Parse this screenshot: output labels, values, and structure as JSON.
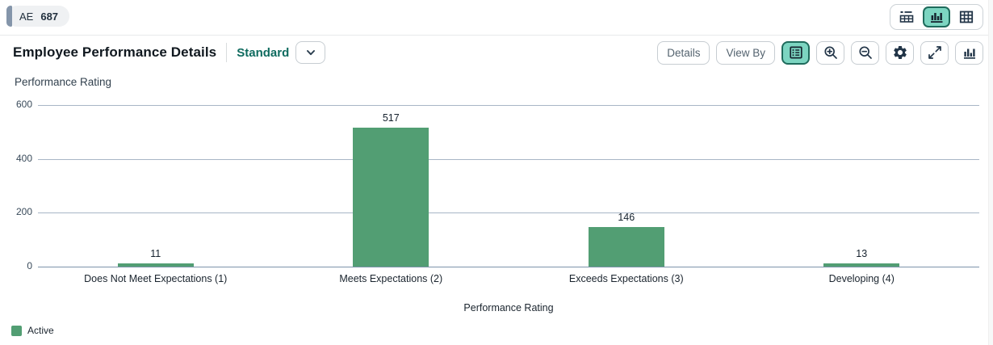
{
  "app": {
    "badge": {
      "label": "AE",
      "count": "687"
    },
    "view_switcher": {
      "selected": "chart-view",
      "options": [
        {
          "name": "chart-table-view",
          "icon": "chart-table-icon",
          "selected": false
        },
        {
          "name": "chart-view",
          "icon": "bar-chart-icon",
          "selected": true
        },
        {
          "name": "table-view",
          "icon": "grid-table-icon",
          "selected": false
        }
      ]
    }
  },
  "header": {
    "title": "Employee Performance Details",
    "variant_label": "Standard",
    "variant_chevron_icon": "chevron-down-icon",
    "details_label": "Details",
    "view_by_label": "View By",
    "icon_buttons": [
      {
        "name": "legend-toggle",
        "icon": "legend-icon",
        "selected": true
      },
      {
        "name": "zoom-in",
        "icon": "zoom-in-icon",
        "selected": false
      },
      {
        "name": "zoom-out",
        "icon": "zoom-out-icon",
        "selected": false
      },
      {
        "name": "settings",
        "icon": "gear-icon",
        "selected": false
      },
      {
        "name": "fullscreen",
        "icon": "fullscreen-icon",
        "selected": false
      },
      {
        "name": "chart-type",
        "icon": "column-chart-icon",
        "selected": false
      }
    ]
  },
  "chart_data": {
    "type": "bar",
    "title": "Performance Rating",
    "categories": [
      "Does Not Meet Expectations (1)",
      "Meets Expectations (2)",
      "Exceeds Expectations (3)",
      "Developing (4)"
    ],
    "values": [
      11,
      517,
      146,
      13
    ],
    "series": [
      {
        "name": "Active",
        "values": [
          11,
          517,
          146,
          13
        ]
      }
    ],
    "xlabel": "Performance Rating",
    "ylabel": "",
    "ylim": [
      0,
      600
    ],
    "yticks": [
      0,
      200,
      400,
      600
    ],
    "grid": true,
    "legend_position": "bottom-left",
    "bar_color": "#529e73"
  },
  "legend": {
    "items": [
      {
        "label": "Active",
        "color": "#529e73"
      }
    ]
  },
  "colors": {
    "accent_teal": "#0f6b5f",
    "selected_bg": "#7cd5c1",
    "selected_border": "#1f6b5c",
    "icon_dark": "#223548",
    "bar_green": "#529e73",
    "gridline": "#a8b6c6",
    "axis_line": "#7e94aa",
    "badge_accent": "#8495aa"
  }
}
